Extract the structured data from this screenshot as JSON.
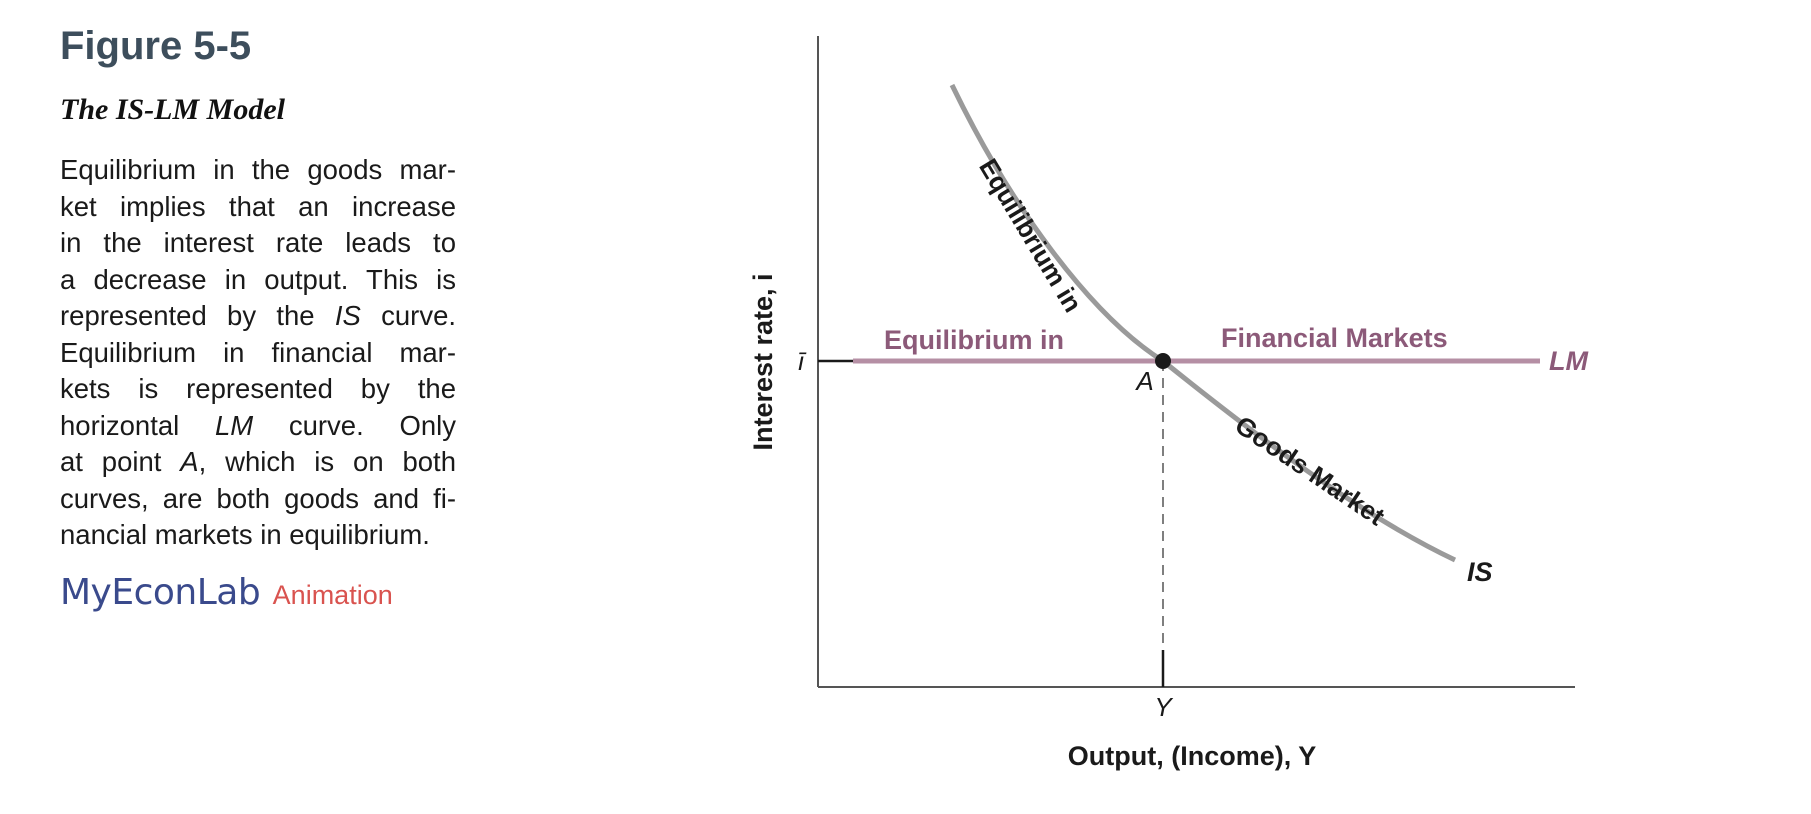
{
  "figure": {
    "number": "Figure 5-5",
    "title": "The IS-LM Model",
    "caption_lines": [
      [
        "Equilibrium in the goods mar-"
      ],
      [
        "ket implies that an increase"
      ],
      [
        "in the interest rate leads to"
      ],
      [
        "a decrease in output. This is"
      ],
      [
        "represented by the ",
        {
          "i": "IS"
        },
        " curve."
      ],
      [
        "Equilibrium in financial mar-"
      ],
      [
        "kets is represented by the"
      ],
      [
        "horizontal ",
        {
          "i": "LM"
        },
        " curve. Only"
      ],
      [
        "at point ",
        {
          "i": "A"
        },
        ", which is on both"
      ],
      [
        "curves, are both goods and fi-"
      ],
      [
        "nancial markets in equilibrium."
      ]
    ],
    "brand": "MyEconLab",
    "brand_link": "Animation"
  },
  "diagram": {
    "y_axis_label": "Interest rate, i",
    "x_axis_label": "Output, (Income), Y",
    "y_tick": "ī",
    "x_tick": "Y",
    "point_label": "A",
    "is_curve_label": "IS",
    "lm_curve_label": "LM",
    "is_annotation_top": "Equilibrium in",
    "is_annotation_bottom": "Goods Market",
    "lm_annotation_left": "Equilibrium in",
    "lm_annotation_right": "Financial Markets",
    "colors": {
      "is_curve": "#9a9a9a",
      "lm_curve": "#b58fa4",
      "lm_text": "#8c5a79",
      "axis": "#555555",
      "text": "#1a1a1a",
      "title": "#3d4e5c",
      "brand": "#3a4a8c",
      "brand_link": "#d9534f"
    }
  }
}
